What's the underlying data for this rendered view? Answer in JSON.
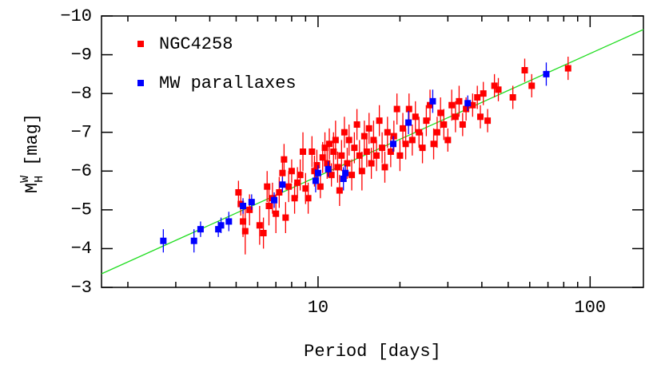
{
  "chart_data": {
    "type": "scatter",
    "xlabel": "Period [days]",
    "ylabel": {
      "main": "M",
      "sup": "W",
      "sub": "H",
      "unit": "[mag]"
    },
    "xscale": "log",
    "xlim": [
      1.6,
      157
    ],
    "ylim": [
      -3,
      -10
    ],
    "xticks": [
      10,
      100
    ],
    "xminorticks": [
      2,
      3,
      4,
      5,
      6,
      7,
      8,
      9,
      20,
      30,
      40,
      50,
      60,
      70,
      80,
      90
    ],
    "yticks": [
      {
        "value": -10,
        "label": "−10"
      },
      {
        "value": -9,
        "label": "−9"
      },
      {
        "value": -8,
        "label": "−8"
      },
      {
        "value": -7,
        "label": "−7"
      },
      {
        "value": -6,
        "label": "−6"
      },
      {
        "value": -5,
        "label": "−5"
      },
      {
        "value": -4,
        "label": "−4"
      },
      {
        "value": -3,
        "label": "−3"
      }
    ],
    "legend": "upper left",
    "fit_line": {
      "color": "#22dd22",
      "x": [
        1.6,
        157
      ],
      "values": [
        -3.35,
        -9.65
      ]
    },
    "series": [
      {
        "name": "NGC4258",
        "color": "#ff0000",
        "x": [
          5.1,
          5.2,
          5.4,
          5.3,
          5.6,
          6.1,
          6.3,
          6.5,
          6.6,
          6.8,
          7.0,
          7.2,
          7.4,
          7.5,
          7.6,
          7.8,
          8.0,
          8.2,
          8.4,
          8.6,
          8.8,
          9.0,
          9.2,
          9.5,
          9.7,
          9.9,
          10.2,
          10.4,
          10.6,
          10.8,
          11.0,
          11.2,
          11.4,
          11.6,
          11.8,
          12.0,
          12.2,
          12.5,
          12.8,
          13.0,
          13.3,
          13.6,
          13.9,
          14.2,
          14.5,
          14.8,
          15.1,
          15.4,
          15.7,
          16.0,
          16.4,
          16.8,
          17.2,
          17.6,
          18.0,
          18.5,
          19.0,
          19.5,
          20.0,
          20.5,
          21.0,
          21.6,
          22.2,
          22.8,
          23.5,
          24.2,
          25.0,
          25.8,
          26.6,
          27.4,
          28.2,
          29.0,
          30.0,
          31.0,
          32.0,
          33.0,
          34.0,
          35.0,
          37.0,
          38.5,
          39.5,
          40.5,
          42.0,
          44.5,
          46.0,
          52.0,
          57.5,
          61.0,
          83.0
        ],
        "values": [
          -5.45,
          -5.15,
          -4.45,
          -4.7,
          -5.0,
          -4.6,
          -4.4,
          -5.6,
          -5.1,
          -5.3,
          -4.9,
          -5.45,
          -5.95,
          -6.3,
          -4.8,
          -5.6,
          -6.0,
          -5.3,
          -5.7,
          -5.9,
          -6.5,
          -5.55,
          -5.3,
          -6.5,
          -6.0,
          -6.15,
          -5.6,
          -6.35,
          -6.6,
          -6.2,
          -6.7,
          -5.9,
          -6.5,
          -6.8,
          -6.1,
          -5.5,
          -6.4,
          -7.0,
          -6.2,
          -6.8,
          -5.9,
          -6.6,
          -7.2,
          -6.4,
          -6.0,
          -6.9,
          -6.5,
          -7.1,
          -6.2,
          -6.8,
          -6.4,
          -7.3,
          -6.6,
          -6.1,
          -7.0,
          -6.5,
          -6.9,
          -7.6,
          -6.4,
          -7.1,
          -6.7,
          -7.6,
          -6.8,
          -7.4,
          -7.0,
          -6.6,
          -7.3,
          -7.7,
          -6.7,
          -7.0,
          -7.5,
          -7.2,
          -6.8,
          -7.7,
          -7.4,
          -7.8,
          -7.2,
          -7.6,
          -7.7,
          -7.9,
          -7.4,
          -8.0,
          -7.3,
          -8.2,
          -8.1,
          -7.9,
          -8.6,
          -8.2,
          -8.65
        ],
        "errors": [
          0.3,
          0.3,
          0.6,
          0.4,
          0.4,
          0.5,
          0.4,
          0.4,
          0.5,
          0.4,
          0.5,
          0.4,
          0.4,
          0.4,
          0.4,
          0.4,
          0.3,
          0.4,
          0.4,
          0.4,
          0.5,
          0.4,
          0.4,
          0.4,
          0.4,
          0.4,
          0.3,
          0.4,
          0.4,
          0.4,
          0.4,
          0.3,
          0.5,
          0.5,
          0.4,
          0.4,
          0.4,
          0.4,
          0.4,
          0.4,
          0.4,
          0.4,
          0.4,
          0.4,
          0.5,
          0.4,
          0.4,
          0.4,
          0.4,
          0.5,
          0.4,
          0.4,
          0.4,
          0.4,
          0.4,
          0.4,
          0.4,
          0.4,
          0.4,
          0.4,
          0.4,
          0.4,
          0.4,
          0.4,
          0.4,
          0.4,
          0.4,
          0.4,
          0.4,
          0.4,
          0.4,
          0.4,
          0.3,
          0.4,
          0.4,
          0.4,
          0.3,
          0.3,
          0.3,
          0.3,
          0.3,
          0.3,
          0.3,
          0.3,
          0.3,
          0.3,
          0.3,
          0.3,
          0.3
        ]
      },
      {
        "name": "MW parallaxes",
        "color": "#0000ff",
        "x": [
          2.7,
          3.5,
          3.7,
          4.3,
          4.4,
          4.7,
          5.3,
          5.7,
          6.9,
          7.4,
          9.8,
          10.0,
          10.9,
          12.4,
          12.6,
          18.9,
          21.5,
          26.4,
          35.5,
          69
        ],
        "values": [
          -4.2,
          -4.2,
          -4.5,
          -4.5,
          -4.6,
          -4.7,
          -5.1,
          -5.2,
          -5.25,
          -5.65,
          -5.75,
          -5.95,
          -6.05,
          -5.8,
          -5.95,
          -6.7,
          -7.25,
          -7.8,
          -7.75,
          -8.5
        ],
        "errors": [
          0.3,
          0.3,
          0.2,
          0.2,
          0.2,
          0.25,
          0.2,
          0.2,
          0.2,
          0.2,
          0.3,
          0.2,
          0.2,
          0.3,
          0.2,
          0.2,
          0.3,
          0.3,
          0.2,
          0.3
        ]
      }
    ]
  }
}
